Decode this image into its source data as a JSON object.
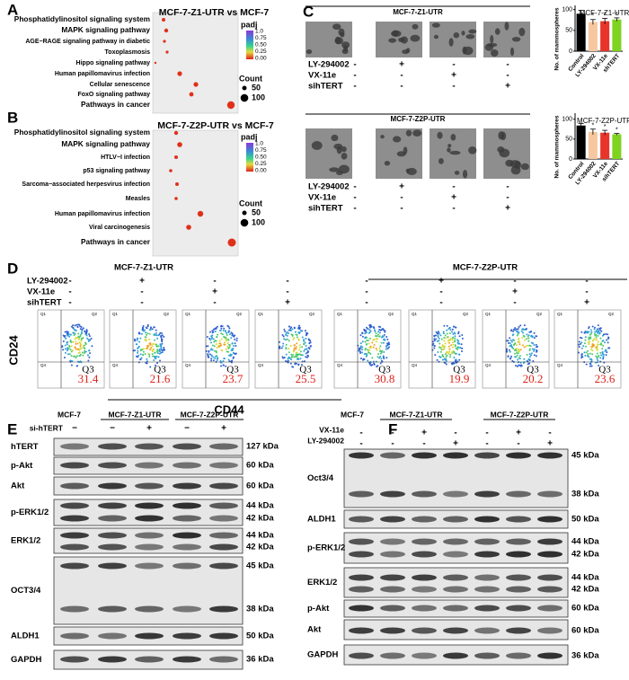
{
  "panel_labels": [
    "A",
    "B",
    "C",
    "D",
    "E",
    "F"
  ],
  "panel_a": {
    "title": "MCF-7-Z1-UTR vs MCF-7",
    "pathways": [
      {
        "name": "Phosphatidylinositol signaling system",
        "color": "#e0201a"
      },
      {
        "name": "MAPK  signaling pathway",
        "color": "#e0201a"
      },
      {
        "name": "AGE−RAGE signaling pathway in diabetic",
        "color": "#000000"
      },
      {
        "name": "Toxoplasmosis",
        "color": "#000000"
      },
      {
        "name": "Hippo signaling pathway",
        "color": "#000000"
      },
      {
        "name": "Human papillomavirus infection",
        "color": "#000000"
      },
      {
        "name": "Cellular senescence",
        "color": "#000000"
      },
      {
        "name": "FoxO signaling pathway",
        "color": "#000000"
      },
      {
        "name": "Pathways in cancer",
        "color": "#e0201a"
      }
    ],
    "legend": {
      "padj_title": "padj",
      "padj_ticks": [
        "1.0",
        "0.75",
        "0.50",
        "0.25",
        "0.00"
      ],
      "count_title": "Count",
      "count_ticks": [
        "50",
        "100"
      ]
    }
  },
  "panel_b": {
    "title": "MCF-7-Z2P-UTR vs MCF-7",
    "pathways": [
      {
        "name": "Phosphatidylinositol signaling system",
        "color": "#e0201a"
      },
      {
        "name": "MAPK  signaling pathway",
        "color": "#e0201a"
      },
      {
        "name": "HTLV−I infection",
        "color": "#000000"
      },
      {
        "name": "p53 signaling pathway",
        "color": "#000000"
      },
      {
        "name": "Sarcoma−associated herpesvirus infection",
        "color": "#000000"
      },
      {
        "name": "Measles",
        "color": "#000000"
      },
      {
        "name": "Human papillomavirus infection",
        "color": "#000000"
      },
      {
        "name": "Viral carcinogenesis",
        "color": "#000000"
      },
      {
        "name": "Pathways in cancer",
        "color": "#e0201a"
      }
    ],
    "legend": {
      "padj_title": "padj",
      "padj_ticks": [
        "1.0",
        "0.75",
        "0.50",
        "0.25",
        "0.00"
      ],
      "count_title": "Count",
      "count_ticks": [
        "50",
        "100"
      ]
    }
  },
  "panel_c": {
    "groups": [
      "MCF-7-Z1-UTR",
      "MCF-7-Z2P-UTR"
    ],
    "treatments": [
      "LY-294002",
      "VX-11e",
      "sihTERT"
    ],
    "conditions": [
      [
        "-",
        "+",
        "-",
        "-"
      ],
      [
        "-",
        "-",
        "+",
        "-"
      ],
      [
        "-",
        "-",
        "-",
        "+"
      ]
    ]
  },
  "chart_data": [
    {
      "type": "bar",
      "title": "MCF-7-Z1-UTR",
      "y_label": "No. of mammospheres",
      "categories": [
        "Control",
        "LY-294002",
        "VX-11e",
        "shTERT"
      ],
      "values": [
        90,
        70,
        72,
        76
      ],
      "errors": [
        8,
        6,
        7,
        4
      ],
      "colors": [
        "#000000",
        "#f7c7a0",
        "#e8352b",
        "#7ed321"
      ],
      "annotations": [
        {
          "category": "LY-294002",
          "text": "*"
        },
        {
          "category": "VX-11e",
          "text": "*"
        },
        {
          "category": "shTERT",
          "text": "*"
        }
      ],
      "ylim": [
        0,
        110
      ],
      "yticks": [
        0,
        50,
        100
      ]
    },
    {
      "type": "bar",
      "title": "MCF-7-Z2P-UTR",
      "y_label": "No. of mammospheres",
      "categories": [
        "Control",
        "LY-294002",
        "VX-11e",
        "sihTERT"
      ],
      "values": [
        84,
        68,
        66,
        62
      ],
      "errors": [
        5,
        7,
        6,
        2
      ],
      "colors": [
        "#000000",
        "#f7c7a0",
        "#e8352b",
        "#7ed321"
      ],
      "annotations": [
        {
          "category": "LY-294002",
          "text": "*"
        },
        {
          "category": "VX-11e",
          "text": "*"
        },
        {
          "category": "sihTERT",
          "text": "*"
        }
      ],
      "ylim": [
        0,
        115
      ],
      "yticks": [
        0,
        50,
        100
      ]
    }
  ],
  "panel_d": {
    "groups": [
      "MCF-7-Z1-UTR",
      "MCF-7-Z2P-UTR"
    ],
    "treatments": [
      "LY-294002",
      "VX-11e",
      "sihTERT"
    ],
    "conditions": [
      [
        "-",
        "+",
        "-",
        "-",
        "-",
        "+",
        "-",
        "-"
      ],
      [
        "-",
        "-",
        "+",
        "-",
        "-",
        "-",
        "+",
        "-"
      ],
      [
        "-",
        "-",
        "-",
        "+",
        "-",
        "-",
        "-",
        "+"
      ]
    ],
    "y_label": "CD24",
    "x_label": "CD44",
    "gate_label": "Q3",
    "other_gates": [
      "Q1",
      "Q2",
      "Q4"
    ],
    "q3_values": [
      31.4,
      21.6,
      23.7,
      25.5,
      30.8,
      19.9,
      20.2,
      23.6
    ]
  },
  "panel_e": {
    "groups": [
      "MCF-7",
      "MCF-7-Z1-UTR",
      "MCF-7-Z2P-UTR"
    ],
    "treatment": "si-hTERT",
    "conditions": [
      "−",
      "−",
      "+",
      "−",
      "+"
    ],
    "blots": [
      {
        "name": "hTERT",
        "sizes": [
          "127 kDa"
        ]
      },
      {
        "name": "p-Akt",
        "sizes": [
          "60 kDa"
        ]
      },
      {
        "name": "Akt",
        "sizes": [
          "60 kDa"
        ]
      },
      {
        "name": "p-ERK1/2",
        "sizes": [
          "44 kDa",
          "42 kDa"
        ]
      },
      {
        "name": "ERK1/2",
        "sizes": [
          "44 kDa",
          "42 kDa"
        ]
      },
      {
        "name": "OCT3/4",
        "sizes": [
          "45 kDa",
          "38 kDa"
        ]
      },
      {
        "name": "ALDH1",
        "sizes": [
          "50 kDa"
        ]
      },
      {
        "name": "GAPDH",
        "sizes": [
          "36 kDa"
        ]
      }
    ]
  },
  "panel_f": {
    "groups": [
      "MCF-7",
      "MCF-7-Z1-UTR",
      "MCF-7-Z2P-UTR"
    ],
    "treatments": [
      "VX-11e",
      "LY-294002"
    ],
    "conditions": [
      [
        "-",
        "-",
        "+",
        "-",
        "-",
        "+",
        "-"
      ],
      [
        "-",
        "-",
        "-",
        "+",
        "-",
        "-",
        "+"
      ]
    ],
    "blots": [
      {
        "name": "Oct3/4",
        "sizes": [
          "45 kDa",
          "38 kDa"
        ]
      },
      {
        "name": "ALDH1",
        "sizes": [
          "50 kDa"
        ]
      },
      {
        "name": "p-ERK1/2",
        "sizes": [
          "44 kDa",
          "42 kDa"
        ]
      },
      {
        "name": "ERK1/2",
        "sizes": [
          "44 kDa",
          "42 kDa"
        ]
      },
      {
        "name": "p-Akt",
        "sizes": [
          "60 kDa"
        ]
      },
      {
        "name": "Akt",
        "sizes": [
          "60 kDa"
        ]
      },
      {
        "name": "GAPDH",
        "sizes": [
          "36 kDa"
        ]
      }
    ]
  }
}
